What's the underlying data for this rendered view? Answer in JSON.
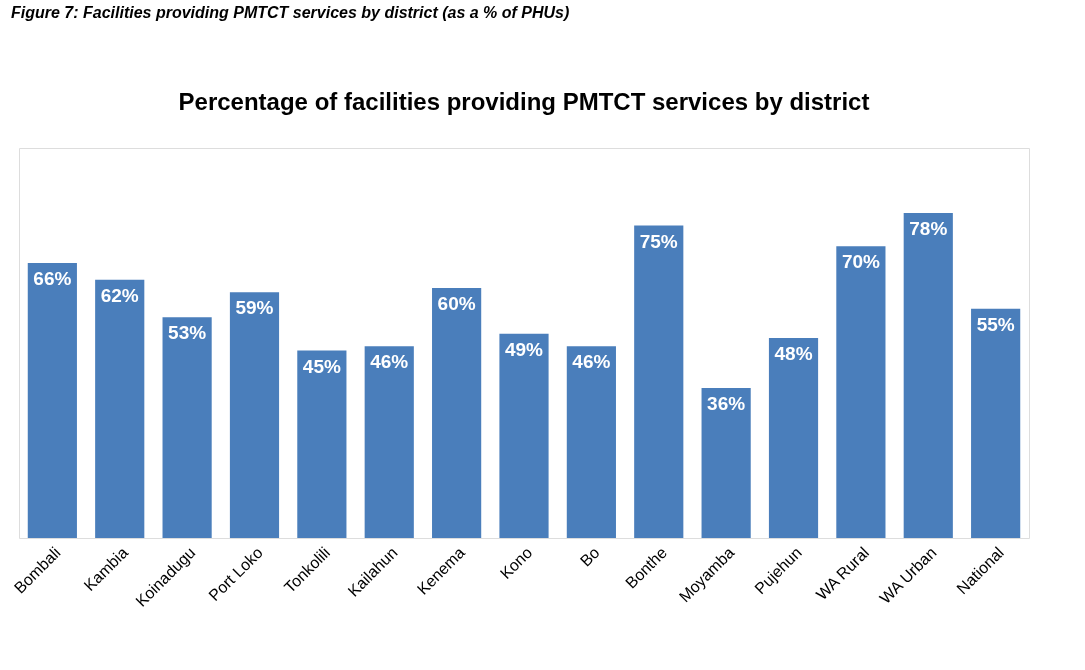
{
  "chart_data": {
    "type": "bar",
    "title": "Percentage of facilities providing PMTCT services by district",
    "annotations": [
      "Figure 7: Facilities providing PMTCT services by district (as a % of PHUs)"
    ],
    "categories": [
      "Bombali",
      "Kambia",
      "Koinadugu",
      "Port Loko",
      "Tonkolili",
      "Kailahun",
      "Kenema",
      "Kono",
      "Bo",
      "Bonthe",
      "Moyamba",
      "Pujehun",
      "WA Rural",
      "WA Urban",
      "National"
    ],
    "series": [
      {
        "color": "#4a7ebb",
        "values": [
          66,
          62,
          53,
          59,
          45,
          46,
          60,
          49,
          46,
          75,
          36,
          48,
          70,
          78,
          55
        ],
        "value_labels": [
          "66%",
          "62%",
          "53%",
          "59%",
          "45%",
          "46%",
          "60%",
          "49%",
          "46%",
          "75%",
          "36%",
          "48%",
          "70%",
          "78%",
          "55%"
        ]
      }
    ],
    "grid": false
  }
}
